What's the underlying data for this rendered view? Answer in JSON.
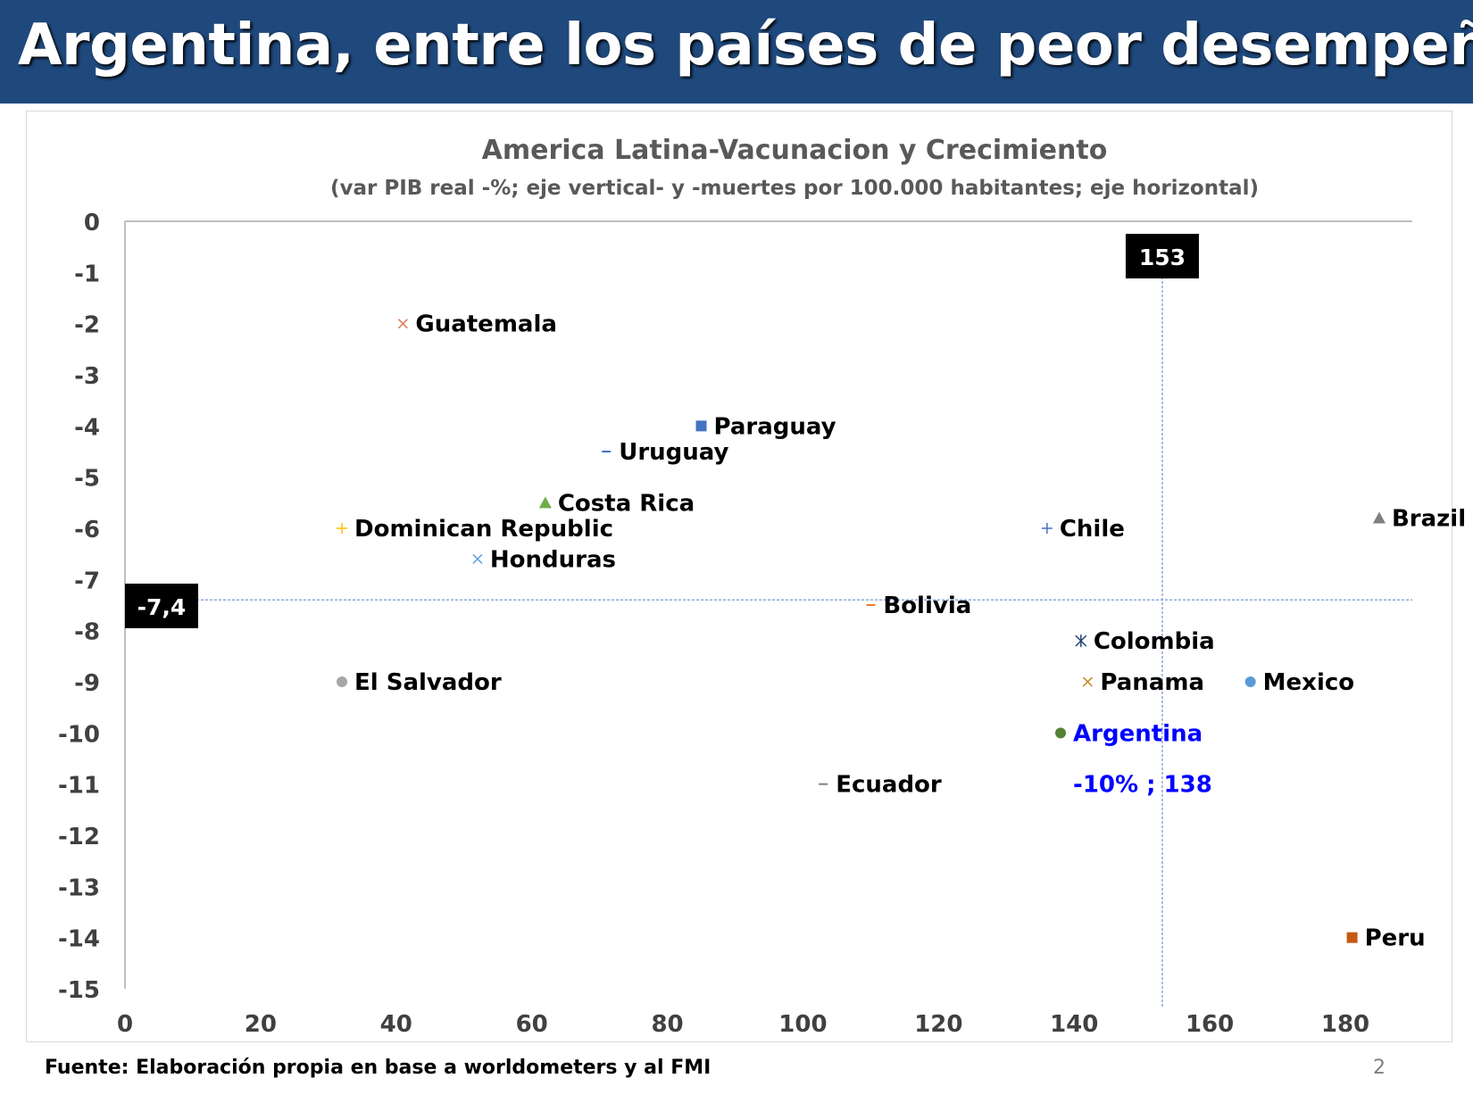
{
  "header": {
    "title": "Argentina, entre los países de peor desempeño",
    "background_color": "#1f497d"
  },
  "footer": {
    "source": "Fuente: Elaboración propia en base a  worldometers y al FMI",
    "page_number": "2"
  },
  "chart_data": {
    "type": "scatter",
    "title": "America Latina-Vacunacion y Crecimiento",
    "subtitle": "(var PIB real -%; eje vertical- y -muertes por 100.000 habitantes; eje horizontal)",
    "xlim": [
      0,
      190
    ],
    "ylim": [
      -15,
      0
    ],
    "xticks": [
      0,
      20,
      40,
      60,
      80,
      100,
      120,
      140,
      160,
      180
    ],
    "yticks": [
      0,
      -1,
      -2,
      -3,
      -4,
      -5,
      -6,
      -7,
      -8,
      -9,
      -10,
      -11,
      -12,
      -13,
      -14,
      -15
    ],
    "grid": false,
    "reference_lines": {
      "vertical": {
        "x": 153,
        "label": "153"
      },
      "horizontal": {
        "y": -7.4,
        "label": "-7,4"
      }
    },
    "points": [
      {
        "name": "Guatemala",
        "x": 41,
        "y": -2.0,
        "marker": "x",
        "color": "#e07b5a"
      },
      {
        "name": "Paraguay",
        "x": 85,
        "y": -4.0,
        "marker": "square",
        "color": "#4472c4"
      },
      {
        "name": "Uruguay",
        "x": 71,
        "y": -4.5,
        "marker": "dash",
        "color": "#4472c4"
      },
      {
        "name": "Costa Rica",
        "x": 62,
        "y": -5.5,
        "marker": "triangle",
        "color": "#70ad47"
      },
      {
        "name": "Dominican Republic",
        "x": 32,
        "y": -6.0,
        "marker": "plus",
        "color": "#ffc000"
      },
      {
        "name": "Honduras",
        "x": 52,
        "y": -6.6,
        "marker": "x",
        "color": "#5b9bd5"
      },
      {
        "name": "Chile",
        "x": 136,
        "y": -6.0,
        "marker": "plus",
        "color": "#4472c4"
      },
      {
        "name": "Brazil",
        "x": 185,
        "y": -5.8,
        "marker": "triangle",
        "color": "#7f7f7f"
      },
      {
        "name": "Bolivia",
        "x": 110,
        "y": -7.5,
        "marker": "dash",
        "color": "#ed7d31"
      },
      {
        "name": "Colombia",
        "x": 141,
        "y": -8.2,
        "marker": "asterisk",
        "color": "#264478"
      },
      {
        "name": "El Salvador",
        "x": 32,
        "y": -9.0,
        "marker": "circle",
        "color": "#a5a5a5"
      },
      {
        "name": "Panama",
        "x": 142,
        "y": -9.0,
        "marker": "x",
        "color": "#c9821e"
      },
      {
        "name": "Mexico",
        "x": 166,
        "y": -9.0,
        "marker": "circle",
        "color": "#5b9bd5"
      },
      {
        "name": "Argentina",
        "x": 138,
        "y": -10.0,
        "marker": "circle",
        "color": "#548235",
        "label_color": "#0000ff"
      },
      {
        "name": "Ecuador",
        "x": 103,
        "y": -11.0,
        "marker": "dash",
        "color": "#7f7f7f"
      },
      {
        "name": "Peru",
        "x": 181,
        "y": -14.0,
        "marker": "square",
        "color": "#c55a11"
      }
    ],
    "annotation": {
      "text": "-10% ; 138",
      "color": "#0000ff"
    }
  }
}
